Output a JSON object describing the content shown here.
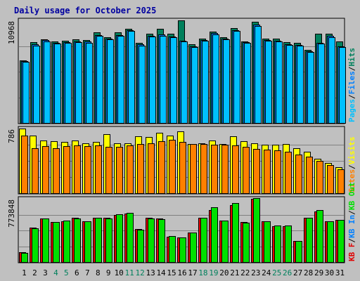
{
  "title": "Daily usage for October 2025",
  "colors": {
    "background": "#c0c0c0",
    "title": "#0000a0",
    "hits": "#00805c",
    "files": "#0080ff",
    "pages": "#00c0ff",
    "visits": "#ffff00",
    "sites": "#ff8000",
    "kb_out": "#00e000",
    "kb_f": "#e00000",
    "kb_in": "#0080ff",
    "weekday": "#000000",
    "weekend": "#00805c"
  },
  "chart_data": [
    {
      "type": "bar",
      "panel": "hits-files-pages",
      "title": "Daily usage for October 2025",
      "ylabel_max": "10968",
      "ymax": 10968,
      "legend": [
        "Pages",
        "Files",
        "Hits"
      ],
      "legend_separator": "/",
      "categories": [
        "1",
        "2",
        "3",
        "4",
        "5",
        "6",
        "7",
        "8",
        "9",
        "10",
        "11",
        "12",
        "13",
        "14",
        "15",
        "16",
        "17",
        "18",
        "19",
        "20",
        "21",
        "22",
        "23",
        "24",
        "25",
        "26",
        "27",
        "28",
        "29",
        "30",
        "31"
      ],
      "weekend": [
        "4",
        "5",
        "11",
        "12",
        "18",
        "19",
        "25",
        "26"
      ],
      "series": [
        {
          "name": "Hits",
          "values": [
            6700,
            8650,
            8950,
            8750,
            8800,
            8950,
            8900,
            9700,
            9200,
            9700,
            10100,
            8600,
            9550,
            10050,
            9550,
            10968,
            8450,
            9050,
            9800,
            9200,
            10150,
            8750,
            10800,
            9050,
            9000,
            8650,
            8550,
            7800,
            9550,
            9550,
            8750
          ]
        },
        {
          "name": "Files",
          "values": [
            6600,
            8400,
            8850,
            8600,
            8650,
            8750,
            8700,
            9400,
            9050,
            9400,
            9950,
            8400,
            9350,
            9450,
            9250,
            8800,
            8200,
            8900,
            9600,
            9050,
            9950,
            8650,
            10500,
            8900,
            8800,
            8450,
            8350,
            7650,
            8600,
            9300,
            8200
          ]
        },
        {
          "name": "Pages",
          "values": [
            6500,
            8300,
            8700,
            8500,
            8550,
            8650,
            8600,
            9300,
            8950,
            9300,
            9850,
            8300,
            9250,
            9350,
            9150,
            8700,
            8100,
            8800,
            9500,
            8950,
            9850,
            8550,
            10400,
            8800,
            8700,
            8350,
            8250,
            7550,
            8500,
            9200,
            8100
          ]
        }
      ]
    },
    {
      "type": "bar",
      "panel": "visits-sites",
      "ylabel_max": "786",
      "ymax": 786,
      "legend": [
        "Visits",
        "Sites"
      ],
      "legend_separator": "/",
      "categories": [
        "1",
        "2",
        "3",
        "4",
        "5",
        "6",
        "7",
        "8",
        "9",
        "10",
        "11",
        "12",
        "13",
        "14",
        "15",
        "16",
        "17",
        "18",
        "19",
        "20",
        "21",
        "22",
        "23",
        "24",
        "25",
        "26",
        "27",
        "28",
        "29",
        "30",
        "31"
      ],
      "series": [
        {
          "name": "Visits",
          "values": [
            786,
            700,
            645,
            630,
            620,
            640,
            610,
            625,
            720,
            605,
            610,
            690,
            680,
            735,
            700,
            750,
            600,
            610,
            640,
            600,
            690,
            630,
            605,
            590,
            590,
            595,
            545,
            500,
            420,
            365,
            315
          ]
        },
        {
          "name": "Sites",
          "values": [
            700,
            550,
            570,
            550,
            570,
            580,
            575,
            580,
            560,
            560,
            580,
            600,
            610,
            630,
            650,
            620,
            600,
            600,
            590,
            590,
            580,
            560,
            540,
            530,
            520,
            500,
            470,
            440,
            390,
            340,
            290
          ]
        }
      ]
    },
    {
      "type": "bar",
      "panel": "kb",
      "ylabel_max": "773848",
      "ymax": 773848,
      "legend": [
        "KB F",
        "KB In",
        "KB Out"
      ],
      "legend_separator": "/",
      "categories": [
        "1",
        "2",
        "3",
        "4",
        "5",
        "6",
        "7",
        "8",
        "9",
        "10",
        "11",
        "12",
        "13",
        "14",
        "15",
        "16",
        "17",
        "18",
        "19",
        "20",
        "21",
        "22",
        "23",
        "24",
        "25",
        "26",
        "27",
        "28",
        "29",
        "30",
        "31"
      ],
      "series": [
        {
          "name": "KB F",
          "values": [
            120000,
            420000,
            530000,
            490000,
            500000,
            540000,
            500000,
            540000,
            540000,
            580000,
            590000,
            400000,
            540000,
            530000,
            310000,
            300000,
            360000,
            540000,
            640000,
            510000,
            700000,
            490000,
            773848,
            500000,
            440000,
            440000,
            260000,
            540000,
            620000,
            500000,
            520000
          ]
        },
        {
          "name": "KB Out",
          "values": [
            115000,
            415000,
            535000,
            490000,
            505000,
            535000,
            500000,
            540000,
            535000,
            585000,
            600000,
            395000,
            535000,
            525000,
            315000,
            300000,
            360000,
            540000,
            670000,
            510000,
            720000,
            485000,
            780000,
            500000,
            445000,
            445000,
            260000,
            540000,
            640000,
            500000,
            520000
          ]
        }
      ]
    }
  ]
}
